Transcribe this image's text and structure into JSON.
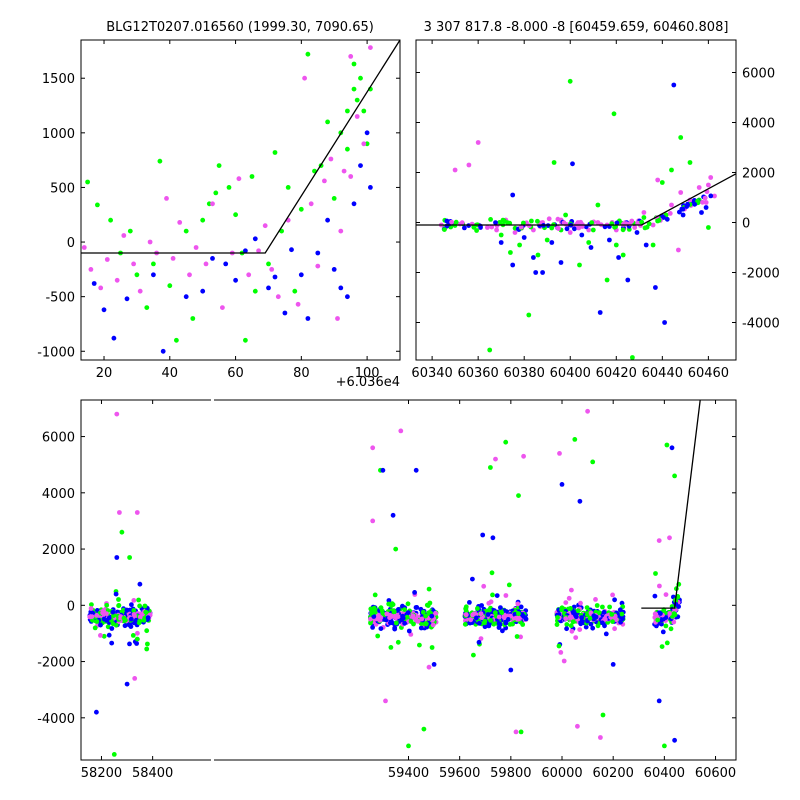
{
  "chart_data": [
    {
      "type": "scatter",
      "title": "BLG12T0207.016560 (1999.30, 7090.65)",
      "xlabel": "",
      "ylabel": "",
      "x_offset_label": "+6.036e4",
      "xlim": [
        13,
        110
      ],
      "ylim": [
        -1080,
        1850
      ],
      "xticks": [
        20,
        40,
        60,
        80,
        100
      ],
      "yticks": [
        -1000,
        -500,
        0,
        500,
        1000,
        1500
      ],
      "grid": false,
      "series_colors": {
        "green": "#00ff00",
        "blue": "#0000ff",
        "magenta": "#ee55ee"
      },
      "model_line": {
        "x": [
          13,
          69,
          110
        ],
        "y": [
          -100,
          -100,
          1850
        ],
        "color": "#000000"
      },
      "points": {
        "green": [
          [
            15,
            550
          ],
          [
            18,
            340
          ],
          [
            22,
            200
          ],
          [
            25,
            -100
          ],
          [
            28,
            100
          ],
          [
            30,
            -300
          ],
          [
            33,
            -600
          ],
          [
            35,
            -200
          ],
          [
            37,
            740
          ],
          [
            40,
            -400
          ],
          [
            42,
            -900
          ],
          [
            45,
            100
          ],
          [
            47,
            -700
          ],
          [
            50,
            200
          ],
          [
            52,
            350
          ],
          [
            54,
            450
          ],
          [
            55,
            700
          ],
          [
            58,
            500
          ],
          [
            60,
            250
          ],
          [
            62,
            -100
          ],
          [
            63,
            -900
          ],
          [
            65,
            600
          ],
          [
            66,
            -450
          ],
          [
            70,
            -200
          ],
          [
            72,
            820
          ],
          [
            74,
            100
          ],
          [
            76,
            500
          ],
          [
            78,
            -450
          ],
          [
            80,
            300
          ],
          [
            82,
            1720
          ],
          [
            84,
            650
          ],
          [
            86,
            700
          ],
          [
            88,
            1100
          ],
          [
            90,
            400
          ],
          [
            92,
            1000
          ],
          [
            94,
            850
          ],
          [
            96,
            1630
          ],
          [
            97,
            1300
          ],
          [
            98,
            1500
          ],
          [
            99,
            1200
          ],
          [
            100,
            900
          ],
          [
            101,
            1400
          ],
          [
            96,
            1400
          ],
          [
            94,
            1200
          ]
        ],
        "blue": [
          [
            17,
            -380
          ],
          [
            20,
            -620
          ],
          [
            23,
            -880
          ],
          [
            27,
            -520
          ],
          [
            35,
            -300
          ],
          [
            38,
            -1000
          ],
          [
            45,
            -500
          ],
          [
            50,
            -450
          ],
          [
            53,
            -150
          ],
          [
            57,
            -200
          ],
          [
            60,
            -350
          ],
          [
            63,
            -80
          ],
          [
            66,
            30
          ],
          [
            70,
            -420
          ],
          [
            72,
            -320
          ],
          [
            75,
            -650
          ],
          [
            77,
            -70
          ],
          [
            80,
            -300
          ],
          [
            82,
            -700
          ],
          [
            85,
            -100
          ],
          [
            88,
            200
          ],
          [
            90,
            -250
          ],
          [
            92,
            -420
          ],
          [
            94,
            -500
          ],
          [
            96,
            350
          ],
          [
            98,
            700
          ],
          [
            100,
            1000
          ],
          [
            101,
            500
          ]
        ],
        "magenta": [
          [
            14,
            -50
          ],
          [
            16,
            -250
          ],
          [
            19,
            -420
          ],
          [
            21,
            -160
          ],
          [
            24,
            -350
          ],
          [
            26,
            60
          ],
          [
            29,
            -200
          ],
          [
            31,
            -450
          ],
          [
            34,
            0
          ],
          [
            36,
            -100
          ],
          [
            39,
            400
          ],
          [
            41,
            -150
          ],
          [
            43,
            180
          ],
          [
            46,
            -300
          ],
          [
            48,
            -50
          ],
          [
            51,
            -200
          ],
          [
            53,
            350
          ],
          [
            56,
            -600
          ],
          [
            59,
            -100
          ],
          [
            61,
            580
          ],
          [
            64,
            -300
          ],
          [
            67,
            -80
          ],
          [
            69,
            150
          ],
          [
            71,
            -250
          ],
          [
            73,
            -500
          ],
          [
            76,
            200
          ],
          [
            79,
            -570
          ],
          [
            81,
            1500
          ],
          [
            83,
            350
          ],
          [
            85,
            -220
          ],
          [
            87,
            560
          ],
          [
            89,
            760
          ],
          [
            91,
            -700
          ],
          [
            93,
            650
          ],
          [
            95,
            600
          ],
          [
            97,
            1150
          ],
          [
            99,
            900
          ],
          [
            101,
            1780
          ],
          [
            95,
            1700
          ],
          [
            92,
            100
          ]
        ]
      }
    },
    {
      "type": "scatter",
      "title": "3 307 817.8 -8.000 -8 [60459.659, 60460.808]",
      "xlabel": "",
      "ylabel": "",
      "xlim": [
        60333,
        60472
      ],
      "ylim": [
        -5500,
        7300
      ],
      "xticks": [
        60340,
        60360,
        60380,
        60400,
        60420,
        60440,
        60460
      ],
      "yticks": [
        -4000,
        -2000,
        0,
        2000,
        4000,
        6000
      ],
      "y_axis_side": "right",
      "grid": false,
      "model_line": {
        "x": [
          60333,
          60431,
          60472
        ],
        "y": [
          -100,
          -100,
          1950
        ],
        "color": "#000000"
      },
      "points": {
        "green": [
          [
            60370,
            -500
          ],
          [
            60374,
            -1200
          ],
          [
            60378,
            -900
          ],
          [
            60382,
            -3700
          ],
          [
            60386,
            -1300
          ],
          [
            60390,
            -700
          ],
          [
            60393,
            2400
          ],
          [
            60396,
            -300
          ],
          [
            60400,
            5650
          ],
          [
            60404,
            -1700
          ],
          [
            60408,
            -800
          ],
          [
            60412,
            700
          ],
          [
            60416,
            -2300
          ],
          [
            60419,
            4350
          ],
          [
            60423,
            -1300
          ],
          [
            60427,
            -5400
          ],
          [
            60432,
            200
          ],
          [
            60436,
            -900
          ],
          [
            60440,
            1600
          ],
          [
            60444,
            2100
          ],
          [
            60448,
            3400
          ],
          [
            60452,
            2400
          ],
          [
            60456,
            900
          ],
          [
            60460,
            -200
          ],
          [
            60365,
            -5100
          ],
          [
            60398,
            300
          ],
          [
            60410,
            -300
          ],
          [
            60420,
            -900
          ]
        ],
        "blue": [
          [
            60370,
            -800
          ],
          [
            60375,
            -1700
          ],
          [
            60380,
            -600
          ],
          [
            60384,
            -1400
          ],
          [
            60388,
            -2000
          ],
          [
            60392,
            -800
          ],
          [
            60396,
            -1600
          ],
          [
            60401,
            2350
          ],
          [
            60405,
            -500
          ],
          [
            60409,
            -1000
          ],
          [
            60413,
            -3600
          ],
          [
            60417,
            -700
          ],
          [
            60421,
            -1400
          ],
          [
            60425,
            -2300
          ],
          [
            60429,
            -400
          ],
          [
            60433,
            -900
          ],
          [
            60437,
            -2600
          ],
          [
            60441,
            -4000
          ],
          [
            60445,
            5500
          ],
          [
            60449,
            300
          ],
          [
            60453,
            800
          ],
          [
            60457,
            400
          ],
          [
            60459,
            600
          ],
          [
            60375,
            1100
          ],
          [
            60385,
            -2000
          ]
        ],
        "magenta": [
          [
            60344,
            -100
          ],
          [
            60350,
            2100
          ],
          [
            60356,
            2300
          ],
          [
            60360,
            3200
          ],
          [
            60364,
            -200
          ],
          [
            60368,
            -300
          ],
          [
            60372,
            100
          ],
          [
            60376,
            -400
          ],
          [
            60380,
            -100
          ],
          [
            60384,
            -300
          ],
          [
            60388,
            0
          ],
          [
            60392,
            -200
          ],
          [
            60396,
            100
          ],
          [
            60400,
            -400
          ],
          [
            60404,
            -100
          ],
          [
            60408,
            -300
          ],
          [
            60412,
            0
          ],
          [
            60416,
            -100
          ],
          [
            60420,
            -300
          ],
          [
            60424,
            0
          ],
          [
            60428,
            -200
          ],
          [
            60432,
            400
          ],
          [
            60436,
            -100
          ],
          [
            60440,
            200
          ],
          [
            60444,
            700
          ],
          [
            60448,
            1200
          ],
          [
            60452,
            900
          ],
          [
            60456,
            1400
          ],
          [
            60460,
            1500
          ],
          [
            60461,
            1800
          ],
          [
            60447,
            -1100
          ],
          [
            60438,
            1700
          ]
        ]
      }
    },
    {
      "type": "scatter",
      "title": "",
      "xlabel": "",
      "ylabel": "",
      "xlim": [
        58120,
        60680
      ],
      "ylim": [
        -5500,
        7300
      ],
      "xticks": [
        58200,
        58400,
        59400,
        59600,
        59800,
        60000,
        60200,
        60400,
        60600
      ],
      "yticks": [
        -4000,
        -2000,
        0,
        2000,
        4000,
        6000
      ],
      "axis_break": [
        58420,
        59220
      ],
      "grid": false,
      "model_line": {
        "x": [
          60310,
          60440,
          60540
        ],
        "y": [
          -100,
          -100,
          7300
        ],
        "color": "#000000"
      },
      "seasons": [
        [
          58150,
          58390
        ],
        [
          59250,
          59510
        ],
        [
          59620,
          59860
        ],
        [
          59980,
          60240
        ],
        [
          60360,
          60460
        ]
      ],
      "season_outliers": {
        "green": [
          [
            58250,
            -5300
          ],
          [
            58280,
            2600
          ],
          [
            58310,
            1700
          ],
          [
            58340,
            -1200
          ],
          [
            59290,
            4800
          ],
          [
            59350,
            2000
          ],
          [
            59400,
            -5000
          ],
          [
            59460,
            -4400
          ],
          [
            59720,
            4900
          ],
          [
            59780,
            5800
          ],
          [
            59830,
            3900
          ],
          [
            59840,
            -4500
          ],
          [
            60050,
            5900
          ],
          [
            60120,
            5100
          ],
          [
            60160,
            -3900
          ],
          [
            60410,
            5700
          ],
          [
            60440,
            4600
          ],
          [
            60400,
            -5000
          ]
        ],
        "blue": [
          [
            58180,
            -3800
          ],
          [
            58260,
            1700
          ],
          [
            58300,
            -2800
          ],
          [
            59300,
            4800
          ],
          [
            59340,
            3200
          ],
          [
            59430,
            4800
          ],
          [
            59500,
            -2100
          ],
          [
            59690,
            2500
          ],
          [
            59730,
            2400
          ],
          [
            59800,
            -2300
          ],
          [
            60000,
            4300
          ],
          [
            60070,
            3700
          ],
          [
            60200,
            -2100
          ],
          [
            60430,
            5600
          ],
          [
            60380,
            -3400
          ],
          [
            60440,
            -4800
          ]
        ],
        "magenta": [
          [
            58260,
            6800
          ],
          [
            58270,
            3300
          ],
          [
            58340,
            3300
          ],
          [
            58330,
            -2600
          ],
          [
            59260,
            5600
          ],
          [
            59260,
            3000
          ],
          [
            59310,
            -3400
          ],
          [
            59370,
            6200
          ],
          [
            59480,
            -2200
          ],
          [
            59740,
            5200
          ],
          [
            59820,
            -4500
          ],
          [
            59850,
            5300
          ],
          [
            59990,
            5400
          ],
          [
            60060,
            -4300
          ],
          [
            60100,
            6900
          ],
          [
            60150,
            -4700
          ],
          [
            60380,
            2300
          ],
          [
            60420,
            2400
          ]
        ]
      }
    }
  ]
}
